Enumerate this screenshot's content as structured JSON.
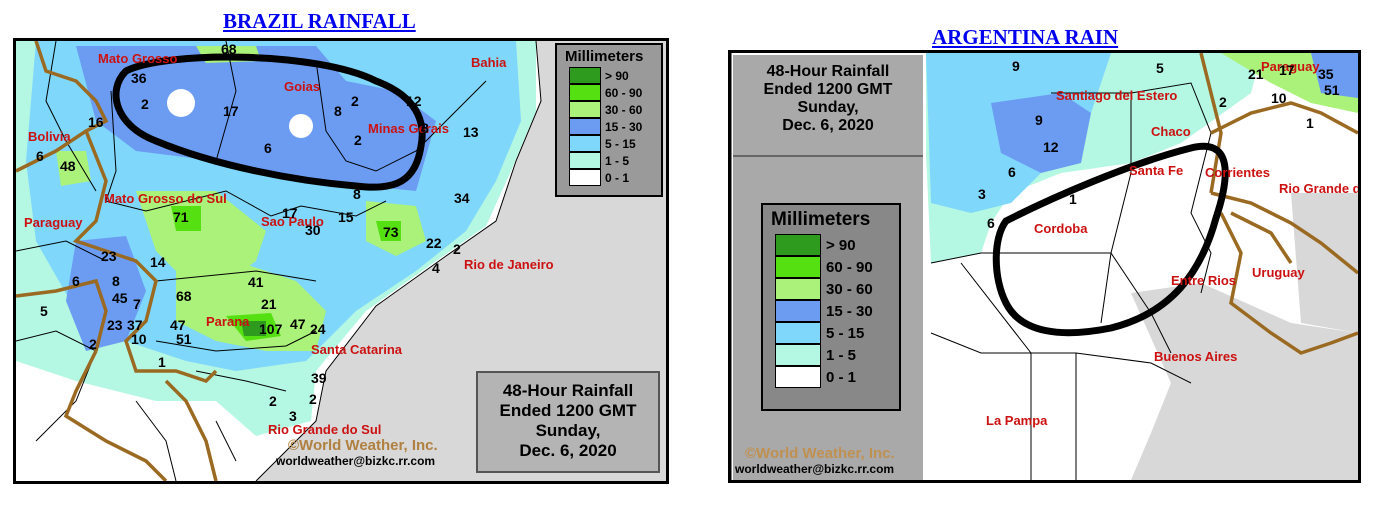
{
  "brazil": {
    "title": "BRAZIL RAINFALL",
    "legend_title": "Millimeters",
    "info_lines": [
      "48-Hour Rainfall",
      "Ended 1200 GMT",
      "Sunday,",
      "Dec. 6, 2020"
    ],
    "credit": "©World Weather, Inc.",
    "email": "worldweather@bizkc.rr.com",
    "region_labels": [
      "Mato Grosso",
      "Goias",
      "Bahia",
      "Minas Gerais",
      "Bolivia",
      "Mato Grosso do Sul",
      "Sao Paulo",
      "Paraguay",
      "Rio de Janeiro",
      "Parana",
      "Santa Catarina",
      "Rio Grande do Sul"
    ],
    "rain_values": [
      "68",
      "36",
      "2",
      "17",
      "8",
      "2",
      "12",
      "16",
      "8",
      "13",
      "6",
      "48",
      "6",
      "2",
      "8",
      "34",
      "71",
      "17",
      "30",
      "15",
      "73",
      "22",
      "2",
      "4",
      "23",
      "14",
      "6",
      "8",
      "45",
      "7",
      "68",
      "41",
      "5",
      "23",
      "37",
      "10",
      "47",
      "51",
      "21",
      "107",
      "47",
      "24",
      "2",
      "1",
      "39",
      "2",
      "2",
      "3"
    ]
  },
  "argentina": {
    "title": "ARGENTINA RAIN",
    "legend_title": "Millimeters",
    "info_lines": [
      "48-Hour Rainfall",
      "Ended 1200 GMT",
      "Sunday,",
      "Dec. 6, 2020"
    ],
    "credit": "©World Weather, Inc.",
    "email": "worldweather@bizkc.rr.com",
    "region_labels": [
      "Paraguay",
      "Santiago del Estero",
      "Chaco",
      "Santa Fe",
      "Corrientes",
      "Rio Grande do Sul",
      "Cordoba",
      "Entre Rios",
      "Uruguay",
      "Buenos Aires",
      "La Pampa"
    ],
    "rain_values": [
      "9",
      "5",
      "21",
      "17",
      "35",
      "51",
      "10",
      "2",
      "1",
      "9",
      "12",
      "6",
      "3",
      "1",
      "6"
    ]
  },
  "legend_bins": [
    {
      "label": "> 90",
      "color": "#2e9a1e"
    },
    {
      "label": "60 - 90",
      "color": "#55e011"
    },
    {
      "label": "30 - 60",
      "color": "#aaf27a"
    },
    {
      "label": "15 - 30",
      "color": "#6b9cf2"
    },
    {
      "label": "5 - 15",
      "color": "#7fd7fb"
    },
    {
      "label": "1 - 5",
      "color": "#b4f7e2"
    },
    {
      "label": "0 - 1",
      "color": "#ffffff"
    }
  ],
  "colors": {
    "ocean": "#d8d8d8",
    "state_label": "#cc1111",
    "border_brown": "#9b6a22",
    "title_link": "#0000ee"
  }
}
